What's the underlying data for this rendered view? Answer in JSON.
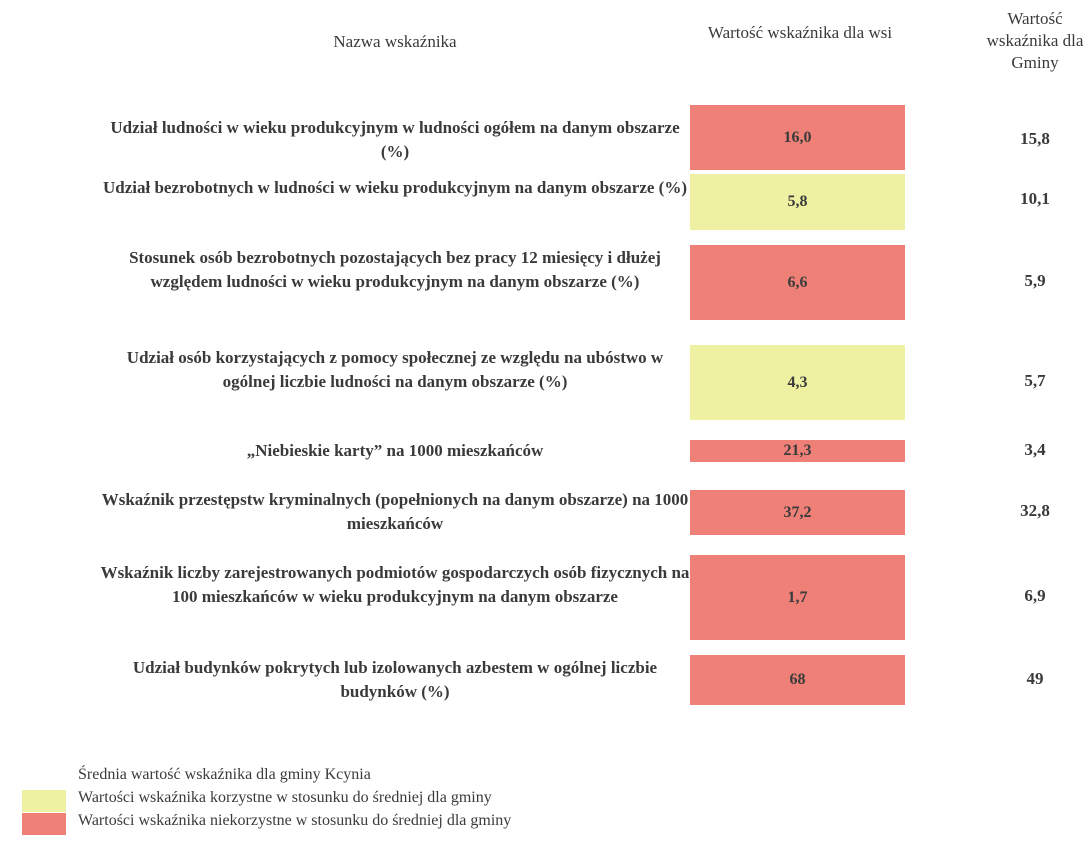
{
  "table": {
    "header": [
      "Nazwa wskaźnika",
      "Wartość wskaźnika dla wsi",
      "Wartość wskaźnika dla Gminy"
    ],
    "rows": [
      {
        "name": "Udział ludności w wieku produkcyjnym w ludności ogółem na danym obszarze (%)",
        "wsi": "16,0",
        "gmina": "15,8",
        "color": "#ef8077"
      },
      {
        "name": "Udział bezrobotnych w ludności w wieku produkcyjnym na danym obszarze (%)",
        "wsi": "5,8",
        "gmina": "10,1",
        "color": "#eef1a2"
      },
      {
        "name": "Stosunek osób bezrobotnych pozostających bez pracy 12 miesięcy i dłużej względem ludności w wieku produkcyjnym na danym obszarze (%)",
        "wsi": "6,6",
        "gmina": "5,9",
        "color": "#ef8077"
      },
      {
        "name": "Udział osób korzystających z pomocy społecznej ze względu na ubóstwo w ogólnej liczbie ludności na danym obszarze (%)",
        "wsi": "4,3",
        "gmina": "5,7",
        "color": "#eef1a2"
      },
      {
        "name": "„Niebieskie karty” na 1000 mieszkańców",
        "wsi": "21,3",
        "gmina": "3,4",
        "color": "#ef8077"
      },
      {
        "name": "Wskaźnik przestępstw kryminalnych (popełnionych na danym obszarze) na 1000 mieszkańców",
        "wsi": "37,2",
        "gmina": "32,8",
        "color": "#ef8077"
      },
      {
        "name": "Wskaźnik liczby zarejestrowanych podmiotów gospodarczych osób fizycznych na 100 mieszkańców w wieku produkcyjnym na danym obszarze",
        "wsi": "1,7",
        "gmina": "6,9",
        "color": "#ef8077"
      },
      {
        "name": "Udział budynków pokrytych lub izolowanych azbestem w ogólnej liczbie budynków (%)",
        "wsi": "68",
        "gmina": "49",
        "color": "#ef8077"
      }
    ]
  },
  "legend": [
    {
      "label": "Średnia wartość wskaźnika dla gminy Kcynia",
      "color": "#ffffff"
    },
    {
      "label": "Wartości wskaźnika korzystne w stosunku do średniej dla gminy",
      "color": "#eef1a2"
    },
    {
      "label": "Wartości wskaźnika niekorzystne w stosunku do średniej dla gminy",
      "color": "#ef8077"
    }
  ]
}
